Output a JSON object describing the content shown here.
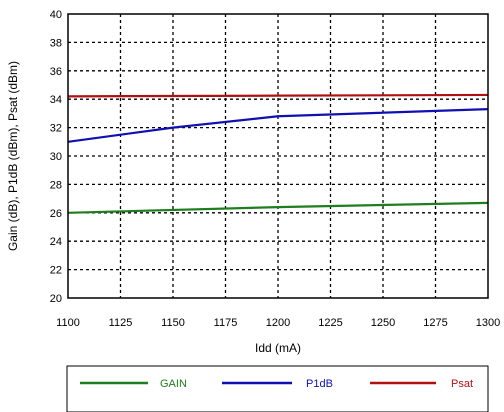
{
  "chart_data": {
    "type": "line",
    "xlabel": "Idd (mA)",
    "ylabel": "Gain (dB), P1dB (dBm), Psat (dBm)",
    "xlim": [
      1100,
      1300
    ],
    "ylim": [
      20,
      40
    ],
    "x_ticks": [
      "1100",
      "1125",
      "1150",
      "1175",
      "1200",
      "1225",
      "1250",
      "1275",
      "1300"
    ],
    "y_ticks": [
      "20",
      "22",
      "24",
      "26",
      "28",
      "30",
      "32",
      "34",
      "36",
      "38",
      "40"
    ],
    "grid": "dashed",
    "legend_position": "bottom",
    "series": [
      {
        "name": "GAIN",
        "color": "#1e7d1e",
        "x": [
          1100,
          1200,
          1300
        ],
        "y": [
          26.0,
          26.4,
          26.7
        ]
      },
      {
        "name": "P1dB",
        "color": "#1010b0",
        "x": [
          1100,
          1150,
          1200,
          1300
        ],
        "y": [
          31.0,
          32.0,
          32.8,
          33.3
        ]
      },
      {
        "name": "Psat",
        "color": "#b01010",
        "x": [
          1100,
          1200,
          1300
        ],
        "y": [
          34.2,
          34.25,
          34.3
        ]
      }
    ]
  }
}
